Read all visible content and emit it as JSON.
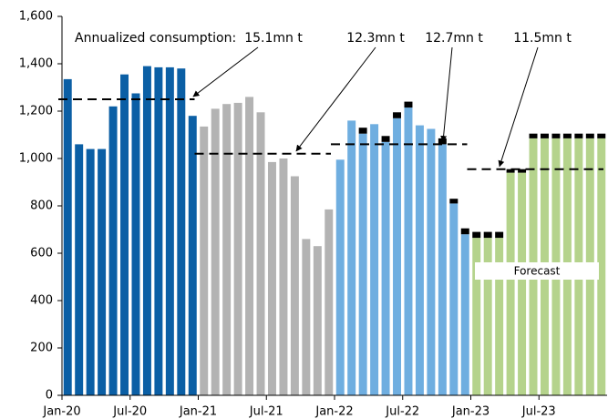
{
  "chart_data": {
    "type": "bar",
    "categories": [
      "Jan-20",
      null,
      null,
      null,
      null,
      null,
      "Jul-20",
      null,
      null,
      null,
      null,
      null,
      "Jan-21",
      null,
      null,
      null,
      null,
      null,
      "Jul-21",
      null,
      null,
      null,
      null,
      null,
      "Jan-22",
      null,
      null,
      null,
      null,
      null,
      "Jul-22",
      null,
      null,
      null,
      null,
      null,
      "Jan-23",
      null,
      null,
      null,
      null,
      null,
      "Jul-23",
      null,
      null,
      null,
      null,
      null
    ],
    "values": [
      1335,
      1060,
      1040,
      1040,
      1220,
      1355,
      1275,
      1390,
      1385,
      1385,
      1380,
      1180,
      1135,
      1210,
      1230,
      1235,
      1260,
      1195,
      985,
      1000,
      925,
      660,
      630,
      785,
      995,
      1160,
      1105,
      1145,
      1070,
      1170,
      1215,
      1140,
      1125,
      1060,
      810,
      680,
      665,
      665,
      665,
      940,
      940,
      1085,
      1085,
      1085,
      1085,
      1085,
      1085,
      1085
    ],
    "period_colors": [
      "#0b5fa5",
      "#b3b3b3",
      "#6faee0",
      "#b5d38c"
    ],
    "cap_color": "#000000",
    "cap_values": [
      null,
      null,
      null,
      null,
      null,
      null,
      null,
      null,
      null,
      null,
      null,
      null,
      null,
      null,
      null,
      null,
      null,
      null,
      null,
      null,
      null,
      null,
      null,
      null,
      null,
      null,
      25,
      null,
      25,
      25,
      25,
      null,
      null,
      25,
      20,
      25,
      25,
      25,
      25,
      15,
      15,
      20,
      20,
      20,
      20,
      20,
      20,
      20
    ],
    "annualized_levels": [
      1250,
      1020,
      1060,
      955
    ],
    "annotation_prefix": "Annualized consumption:",
    "annotations": [
      "15.1mn t",
      "12.3mn t",
      "12.7mn t",
      "11.5mn t"
    ],
    "forecast_label": "Forecast",
    "ylim": [
      0,
      1600
    ],
    "yticks": [
      0,
      200,
      400,
      600,
      800,
      {
        "value": 1000,
        "label": "1,000"
      },
      {
        "value": 1200,
        "label": "1,200"
      },
      {
        "value": 1400,
        "label": "1,400"
      },
      {
        "value": 1600,
        "label": "1,600"
      }
    ]
  }
}
